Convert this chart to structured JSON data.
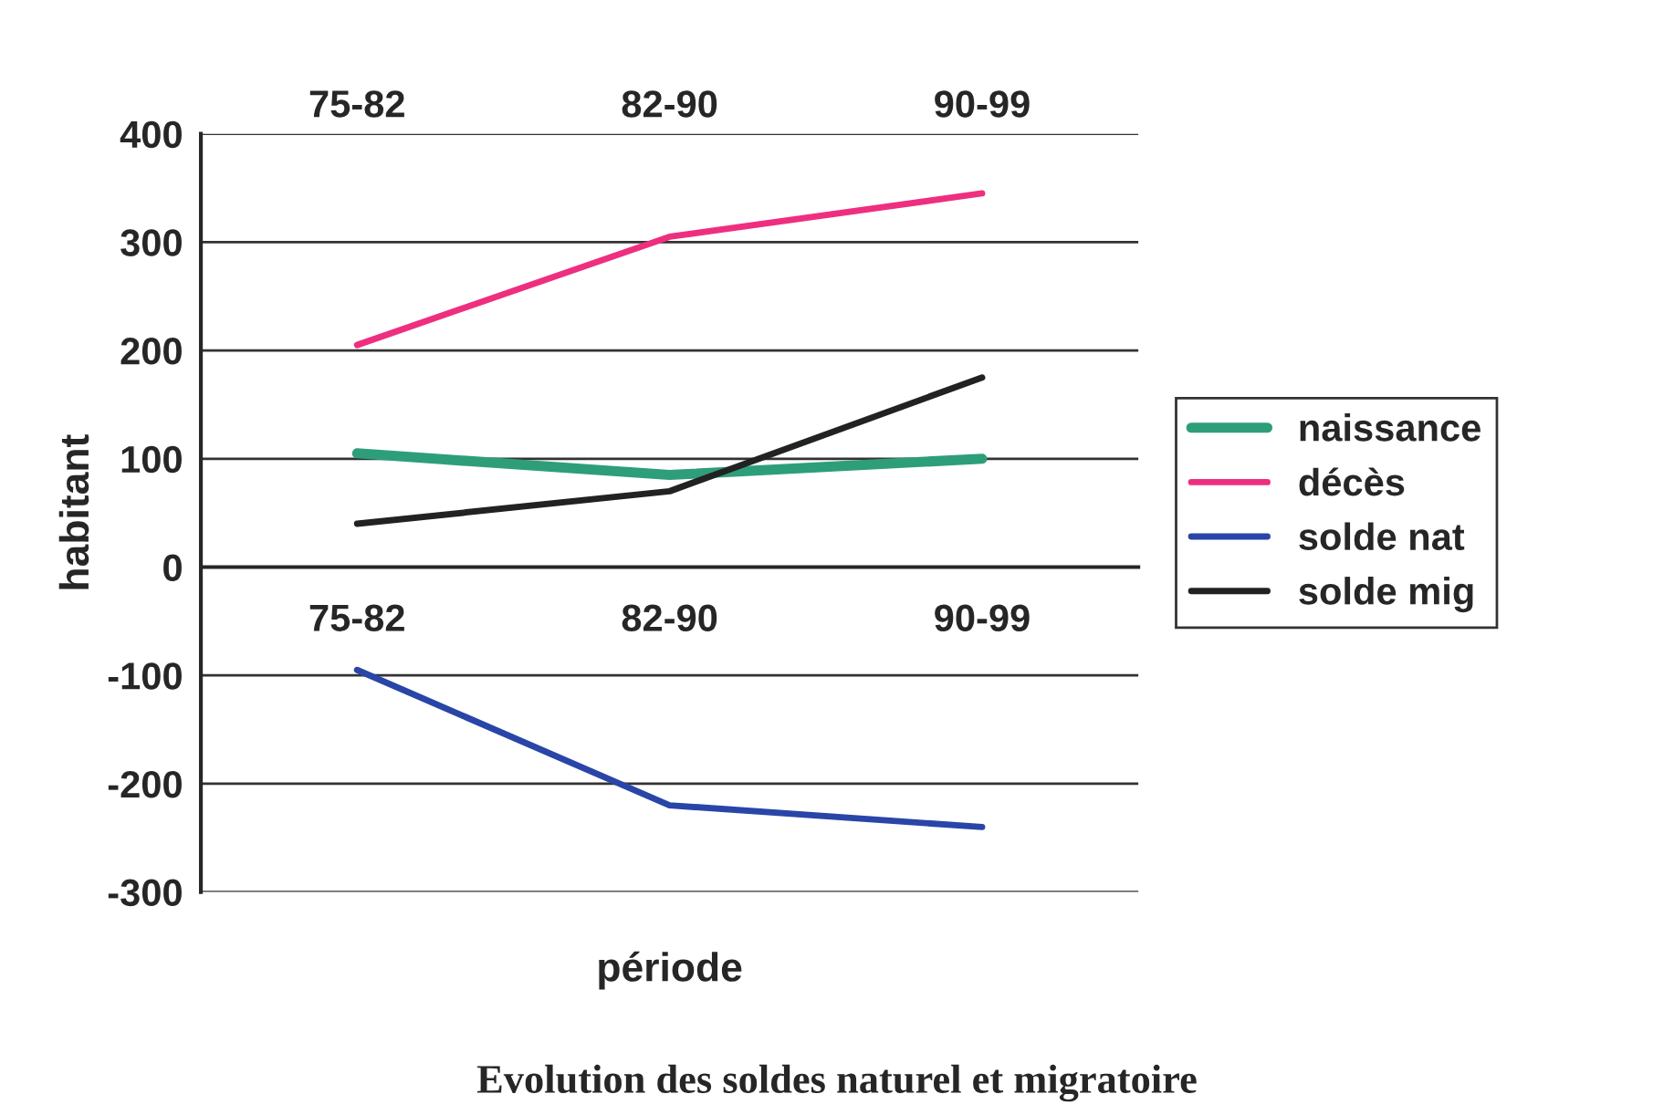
{
  "chart_data": {
    "type": "line",
    "title": "Evolution des soldes naturel et migratoire",
    "xlabel": "période",
    "ylabel": "habitant",
    "categories": [
      "75-82",
      "82-90",
      "90-99"
    ],
    "series": [
      {
        "name": "naissance",
        "color": "#2e9e7a",
        "values": [
          105,
          85,
          100
        ]
      },
      {
        "name": "décès",
        "color": "#ee2f7f",
        "values": [
          205,
          305,
          345
        ]
      },
      {
        "name": "solde nat",
        "color": "#2a45a8",
        "values": [
          -95,
          -220,
          -240
        ]
      },
      {
        "name": "solde mig",
        "color": "#222222",
        "values": [
          40,
          70,
          175
        ]
      }
    ],
    "ylim": [
      -300,
      400
    ],
    "yticks": [
      -300,
      -200,
      -100,
      0,
      100,
      200,
      300,
      400
    ],
    "grid": "y",
    "legend": "right",
    "marker": "none",
    "line_style": "solid"
  }
}
